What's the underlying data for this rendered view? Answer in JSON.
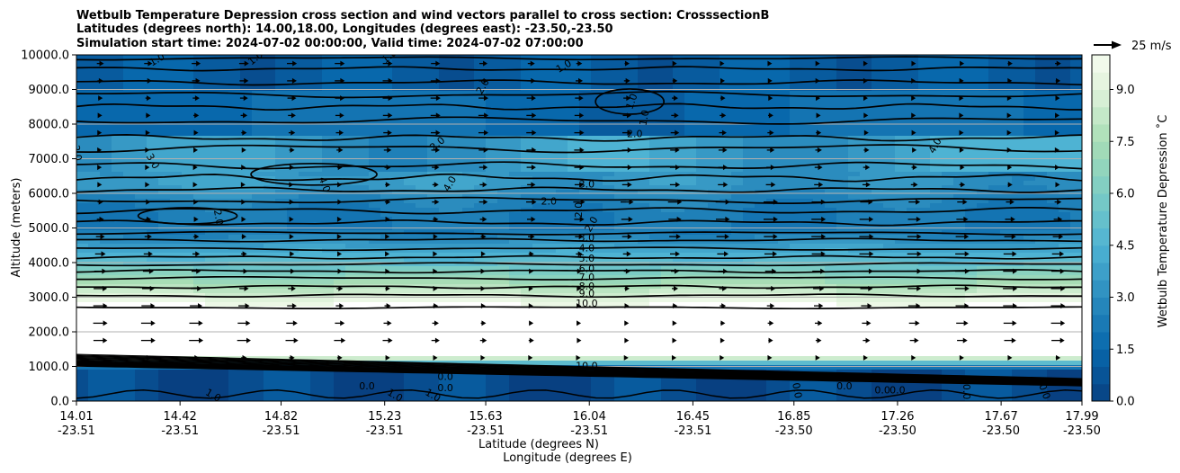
{
  "chart_data": {
    "type": "contour-cross-section",
    "title_lines": [
      "Wetbulb Temperature Depression cross section and wind vectors parallel to cross section: CrosssectionB",
      "Latitudes (degrees north): 14.00,18.00, Longitudes (degrees east): -23.50,-23.50",
      "Simulation start time: 2024-07-02 00:00:00, Valid time: 2024-07-02 07:00:00"
    ],
    "ylabel": "Altitude (meters)",
    "xlabel_lat": "Latitude (degrees N)",
    "xlabel_lon": "Longitude (degrees E)",
    "ylim": [
      0,
      10000
    ],
    "y_ticks": [
      "0.0",
      "1000.0",
      "2000.0",
      "3000.0",
      "4000.0",
      "5000.0",
      "6000.0",
      "7000.0",
      "8000.0",
      "9000.0",
      "10000.0"
    ],
    "y_tick_values": [
      0,
      1000,
      2000,
      3000,
      4000,
      5000,
      6000,
      7000,
      8000,
      9000,
      10000
    ],
    "xlim": [
      14.01,
      17.99
    ],
    "x_ticks_lat": [
      "14.01",
      "14.42",
      "14.82",
      "15.23",
      "15.63",
      "16.04",
      "16.45",
      "16.85",
      "17.26",
      "17.67",
      "17.99"
    ],
    "x_ticks_lon": [
      "-23.51",
      "-23.51",
      "-23.51",
      "-23.51",
      "-23.51",
      "-23.51",
      "-23.51",
      "-23.50",
      "-23.50",
      "-23.50",
      "-23.50"
    ],
    "x_tick_values": [
      14.01,
      14.42,
      14.82,
      15.23,
      15.63,
      16.04,
      16.45,
      16.85,
      17.26,
      17.67,
      17.99
    ],
    "colorbar": {
      "label": "Wetbulb Temperature Depression ˚C",
      "range": [
        0,
        10
      ],
      "ticks": [
        "0.0",
        "1.5",
        "3.0",
        "4.5",
        "6.0",
        "7.5",
        "9.0"
      ],
      "tick_values": [
        0,
        1.5,
        3.0,
        4.5,
        6.0,
        7.5,
        9.0
      ]
    },
    "quiver_key": "25 m/s",
    "contour_levels": [
      1,
      2,
      3,
      4,
      5,
      6,
      7,
      8,
      9,
      10
    ],
    "contour_labels": [
      {
        "text": "1.0",
        "lat": 14.33,
        "alt": 9850,
        "rot": -30
      },
      {
        "text": "1.0",
        "lat": 14.72,
        "alt": 9900,
        "rot": -40
      },
      {
        "text": "1.0",
        "lat": 15.25,
        "alt": 9950,
        "rot": -40
      },
      {
        "text": "1.0",
        "lat": 15.94,
        "alt": 9660,
        "rot": -30
      },
      {
        "text": "2.0",
        "lat": 15.62,
        "alt": 9080,
        "rot": -60
      },
      {
        "text": "1.0",
        "lat": 16.21,
        "alt": 8650,
        "rot": -70
      },
      {
        "text": "1.0",
        "lat": 16.26,
        "alt": 8180,
        "rot": -80
      },
      {
        "text": "2.0",
        "lat": 15.44,
        "alt": 7420,
        "rot": -40
      },
      {
        "text": "2.0",
        "lat": 16.22,
        "alt": 7700,
        "rot": 0
      },
      {
        "text": "3.0",
        "lat": 14.31,
        "alt": 6920,
        "rot": 60
      },
      {
        "text": "4.0",
        "lat": 14.99,
        "alt": 6250,
        "rot": 70
      },
      {
        "text": "4.0",
        "lat": 15.49,
        "alt": 6270,
        "rot": -60
      },
      {
        "text": "3.0",
        "lat": 16.03,
        "alt": 6250,
        "rot": 0
      },
      {
        "text": "2.0",
        "lat": 15.88,
        "alt": 5750,
        "rot": 0
      },
      {
        "text": "2.0",
        "lat": 16.0,
        "alt": 5520,
        "rot": -90
      },
      {
        "text": "2.0",
        "lat": 14.57,
        "alt": 5300,
        "rot": 80
      },
      {
        "text": "2.0",
        "lat": 16.05,
        "alt": 5100,
        "rot": -60
      },
      {
        "text": "4.0",
        "lat": 17.41,
        "alt": 7370,
        "rot": -60
      },
      {
        "text": "2.0",
        "lat": 14.01,
        "alt": 7160,
        "rot": 80
      },
      {
        "text": "3.0",
        "lat": 16.03,
        "alt": 4700,
        "rot": 0
      },
      {
        "text": "4.0",
        "lat": 16.03,
        "alt": 4400,
        "rot": 0
      },
      {
        "text": "5.0",
        "lat": 16.03,
        "alt": 4100,
        "rot": 0
      },
      {
        "text": "6.0",
        "lat": 16.03,
        "alt": 3810,
        "rot": 0
      },
      {
        "text": "7.0",
        "lat": 16.03,
        "alt": 3560,
        "rot": 0
      },
      {
        "text": "8.0",
        "lat": 16.03,
        "alt": 3300,
        "rot": 0
      },
      {
        "text": "9.0",
        "lat": 16.03,
        "alt": 3090,
        "rot": 0
      },
      {
        "text": "10.0",
        "lat": 16.03,
        "alt": 2800,
        "rot": 0
      },
      {
        "text": "10.0",
        "lat": 16.03,
        "alt": 1000,
        "rot": 0
      },
      {
        "text": "0.0",
        "lat": 15.16,
        "alt": 420,
        "rot": 0
      },
      {
        "text": "0.0",
        "lat": 15.47,
        "alt": 690,
        "rot": 0
      },
      {
        "text": "0.0",
        "lat": 15.47,
        "alt": 360,
        "rot": 0
      },
      {
        "text": "1.0",
        "lat": 14.55,
        "alt": 150,
        "rot": 30
      },
      {
        "text": "1.0",
        "lat": 15.27,
        "alt": 150,
        "rot": 30
      },
      {
        "text": "1.0",
        "lat": 15.42,
        "alt": 150,
        "rot": 30
      },
      {
        "text": "0.0",
        "lat": 16.86,
        "alt": 300,
        "rot": 80
      },
      {
        "text": "0.0",
        "lat": 17.05,
        "alt": 420,
        "rot": 0
      },
      {
        "text": "0.0",
        "lat": 17.2,
        "alt": 300,
        "rot": 0
      },
      {
        "text": "0.0",
        "lat": 17.26,
        "alt": 300,
        "rot": 0
      },
      {
        "text": "0.0",
        "lat": 17.53,
        "alt": 270,
        "rot": 90
      },
      {
        "text": "0.0",
        "lat": 17.84,
        "alt": 270,
        "rot": 70
      }
    ]
  }
}
